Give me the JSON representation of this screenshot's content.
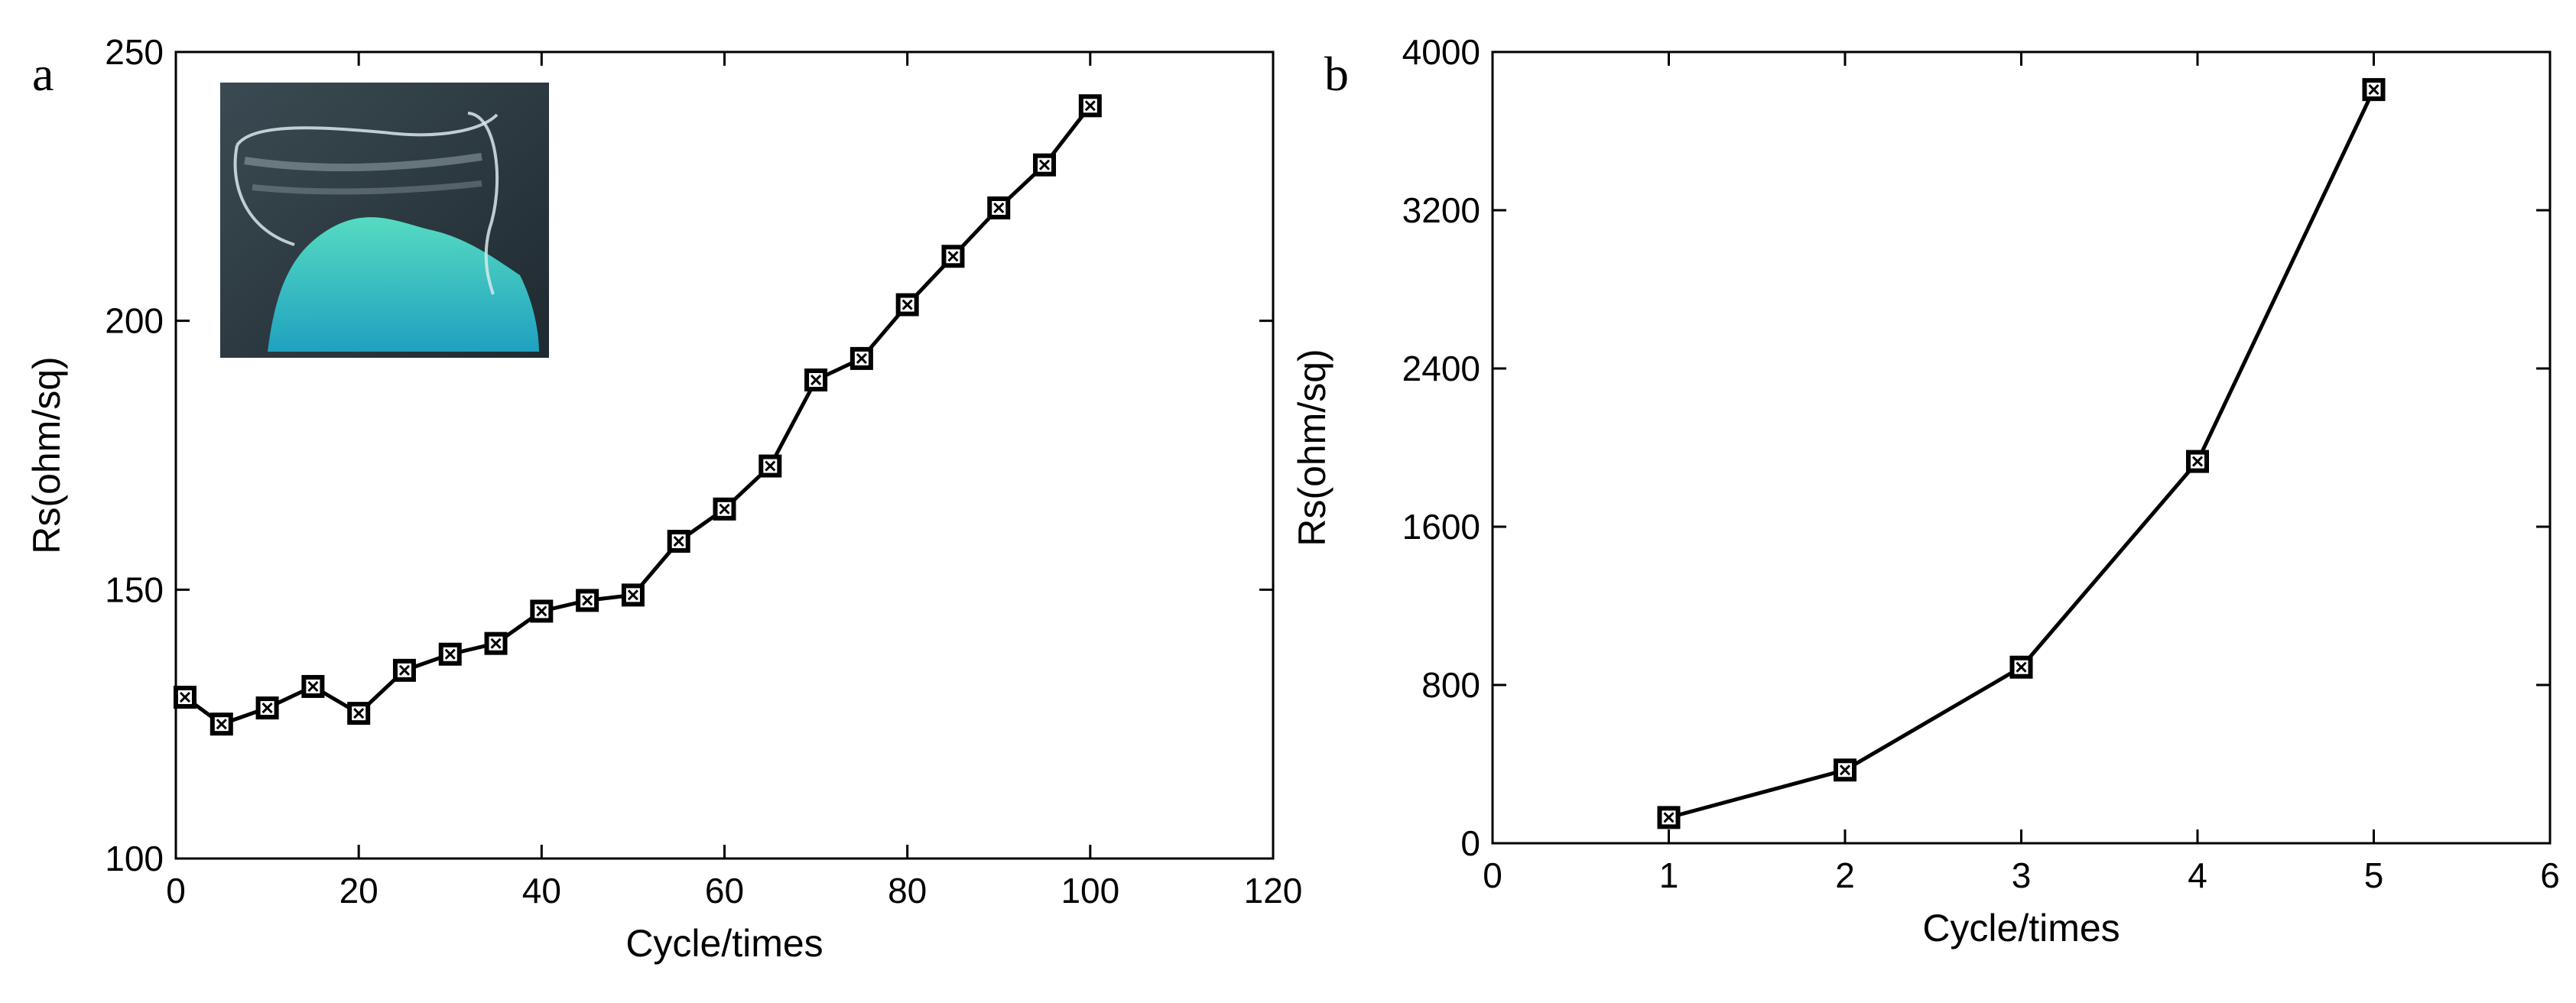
{
  "chart_data": [
    {
      "panel": "a",
      "type": "line",
      "xlabel": "Cycle/times",
      "ylabel": "Rs(ohm/sq)",
      "xlim": [
        0,
        120
      ],
      "ylim": [
        100,
        250
      ],
      "xticks": [
        0,
        20,
        40,
        60,
        80,
        100,
        120
      ],
      "yticks": [
        100,
        150,
        200,
        250
      ],
      "grid": false,
      "has_inset_photo": true,
      "series": [
        {
          "x": [
            1,
            5,
            10,
            15,
            20,
            25,
            30,
            35,
            40,
            45,
            50,
            55,
            60,
            65,
            70,
            75,
            80,
            85,
            90,
            95,
            100
          ],
          "y": [
            130,
            125,
            128,
            132,
            127,
            135,
            138,
            140,
            146,
            148,
            149,
            159,
            165,
            173,
            189,
            193,
            203,
            212,
            221,
            229,
            240
          ]
        }
      ]
    },
    {
      "panel": "b",
      "type": "line",
      "xlabel": "Cycle/times",
      "ylabel": "Rs(ohm/sq)",
      "xlim": [
        0,
        6
      ],
      "ylim": [
        0,
        4000
      ],
      "xticks": [
        0,
        1,
        2,
        3,
        4,
        5,
        6
      ],
      "yticks": [
        0,
        800,
        1600,
        2400,
        3200,
        4000
      ],
      "grid": false,
      "series": [
        {
          "x": [
            1,
            2,
            3,
            4,
            5
          ],
          "y": [
            130,
            370,
            890,
            1930,
            3810
          ]
        }
      ]
    }
  ]
}
